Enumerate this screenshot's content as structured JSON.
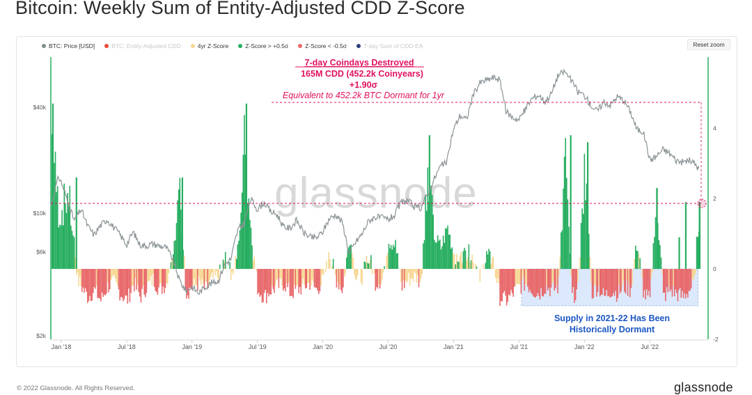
{
  "title": "Bitcoin: Weekly Sum of Entity-Adjusted CDD Z-Score",
  "reset_zoom_label": "Reset zoom",
  "footer": {
    "copyright": "© 2022 Glassnode. All Rights Reserved.",
    "logo_text": "glassnode",
    "watermark_text": "glassnode"
  },
  "legend": [
    {
      "label": "BTC: Price [USD]",
      "color": "#7f8c8d",
      "active": true
    },
    {
      "label": "BTC: Entity-Adjusted CDD",
      "color": "#e74c3c",
      "active": false
    },
    {
      "label": "4yr Z-Score",
      "color": "#f7d794",
      "active": true
    },
    {
      "label": "Z-Score > +0.5σ",
      "color": "#27ae60",
      "active": true
    },
    {
      "label": "Z-Score < -0.5σ",
      "color": "#e86a6a",
      "active": true
    },
    {
      "label": "7-day Sum of CDD-EA",
      "color": "#2c3e7a",
      "active": false
    }
  ],
  "annotations": {
    "top_line1": "7-day Coindays Destroyed",
    "top_line2": "165M CDD (452.2k Coinyears)",
    "top_line3": "+1.90σ",
    "top_line4": "Equivalent to 452.2k BTC Dormant for 1yr",
    "bottom_line1": "Supply in 2021-22 Has Been",
    "bottom_line2": "Historically Dormant"
  },
  "chart_data": {
    "type": "bar",
    "x_ticks": [
      "Jan '18",
      "Jul '18",
      "Jan '19",
      "Jul '19",
      "Jan '20",
      "Jul '20",
      "Jan '21",
      "Jul '21",
      "Jan '22",
      "Jul '22"
    ],
    "y_left_ticks": [
      "$2k",
      "$6k",
      "$10k",
      "$40k"
    ],
    "y_left_tick_values": [
      2000,
      6000,
      10000,
      40000
    ],
    "y_left_scale": "log",
    "y_right_ticks": [
      "-2",
      "0",
      "2",
      "4"
    ],
    "y_right_tick_values": [
      -2,
      0,
      2,
      4
    ],
    "y_right_range": [
      -2,
      5
    ],
    "grid": false,
    "legend_position": "top-left",
    "colors": {
      "price": "#8a9396",
      "zscore_high": "#27ae60",
      "zscore_low": "#e8686a",
      "zscore_mid": "#f7d794",
      "annotation": "#e0115f",
      "annotation_blue": "#1a56c4",
      "shade": "#d6e4fb"
    },
    "series": [
      {
        "name": "BTC: Price [USD]",
        "axis": "left",
        "x": [
          2017.92,
          2017.98,
          2018.0,
          2018.05,
          2018.1,
          2018.15,
          2018.2,
          2018.25,
          2018.3,
          2018.35,
          2018.4,
          2018.45,
          2018.5,
          2018.55,
          2018.6,
          2018.65,
          2018.7,
          2018.75,
          2018.8,
          2018.85,
          2018.9,
          2018.95,
          2019.0,
          2019.05,
          2019.1,
          2019.15,
          2019.2,
          2019.25,
          2019.3,
          2019.35,
          2019.4,
          2019.45,
          2019.5,
          2019.55,
          2019.6,
          2019.65,
          2019.7,
          2019.75,
          2019.8,
          2019.85,
          2019.9,
          2019.95,
          2020.0,
          2020.05,
          2020.1,
          2020.15,
          2020.2,
          2020.25,
          2020.3,
          2020.35,
          2020.4,
          2020.45,
          2020.5,
          2020.55,
          2020.6,
          2020.65,
          2020.7,
          2020.75,
          2020.8,
          2020.85,
          2020.9,
          2020.95,
          2021.0,
          2021.05,
          2021.1,
          2021.15,
          2021.2,
          2021.25,
          2021.3,
          2021.35,
          2021.4,
          2021.45,
          2021.5,
          2021.55,
          2021.6,
          2021.65,
          2021.7,
          2021.75,
          2021.8,
          2021.85,
          2021.9,
          2021.95,
          2022.0,
          2022.05,
          2022.1,
          2022.15,
          2022.2,
          2022.25,
          2022.3,
          2022.35,
          2022.4,
          2022.45,
          2022.5,
          2022.55,
          2022.6,
          2022.65,
          2022.7,
          2022.75,
          2022.8,
          2022.85,
          2022.88
        ],
        "y": [
          11000,
          16000,
          15000,
          11500,
          9000,
          10500,
          8500,
          7500,
          8500,
          9200,
          8300,
          7500,
          6600,
          7800,
          6600,
          6500,
          6700,
          6500,
          6400,
          5500,
          4200,
          3600,
          3800,
          3500,
          3800,
          4000,
          4100,
          5100,
          5500,
          8000,
          8800,
          12000,
          10500,
          11500,
          10200,
          9800,
          8300,
          8200,
          9100,
          7800,
          7300,
          7200,
          7800,
          9300,
          9800,
          8800,
          5800,
          6800,
          7600,
          9000,
          9500,
          9400,
          9200,
          9700,
          11500,
          11800,
          10800,
          10700,
          12800,
          15500,
          18500,
          19500,
          30000,
          36000,
          34000,
          47000,
          55000,
          57000,
          59000,
          58000,
          38000,
          35000,
          34000,
          39000,
          45000,
          47000,
          43000,
          48000,
          61000,
          64000,
          57000,
          49000,
          47000,
          41000,
          38000,
          43000,
          41000,
          46000,
          44000,
          38000,
          30000,
          29000,
          20000,
          21000,
          23000,
          22000,
          20000,
          19500,
          20000,
          19000,
          17500
        ]
      },
      {
        "name": "4yr Z-Score",
        "axis": "right",
        "x": [
          2017.92,
          2017.98,
          2018.05,
          2018.08,
          2018.12,
          2018.15,
          2018.2,
          2018.25,
          2018.3,
          2018.35,
          2018.4,
          2018.45,
          2018.5,
          2018.55,
          2018.6,
          2018.65,
          2018.7,
          2018.75,
          2018.8,
          2018.85,
          2018.9,
          2018.95,
          2019.0,
          2019.05,
          2019.1,
          2019.15,
          2019.2,
          2019.25,
          2019.3,
          2019.35,
          2019.4,
          2019.45,
          2019.5,
          2019.55,
          2019.6,
          2019.65,
          2019.7,
          2019.75,
          2019.8,
          2019.85,
          2019.9,
          2019.95,
          2020.0,
          2020.05,
          2020.1,
          2020.15,
          2020.2,
          2020.25,
          2020.3,
          2020.35,
          2020.4,
          2020.45,
          2020.5,
          2020.55,
          2020.6,
          2020.65,
          2020.7,
          2020.75,
          2020.8,
          2020.85,
          2020.9,
          2020.95,
          2021.0,
          2021.05,
          2021.1,
          2021.15,
          2021.2,
          2021.25,
          2021.3,
          2021.35,
          2021.4,
          2021.45,
          2021.5,
          2021.55,
          2021.6,
          2021.65,
          2021.7,
          2021.75,
          2021.8,
          2021.85,
          2021.9,
          2021.95,
          2022.0,
          2022.05,
          2022.1,
          2022.15,
          2022.2,
          2022.25,
          2022.3,
          2022.35,
          2022.4,
          2022.45,
          2022.5,
          2022.55,
          2022.6,
          2022.65,
          2022.7,
          2022.75,
          2022.8,
          2022.84,
          2022.87
        ],
        "y": [
          4.7,
          1.8,
          2.6,
          1.4,
          -0.3,
          -0.5,
          -0.8,
          -0.6,
          -0.9,
          -0.5,
          -0.4,
          -0.7,
          -0.9,
          -0.4,
          -0.8,
          -0.5,
          -0.3,
          -0.6,
          -0.4,
          0.6,
          2.6,
          -0.7,
          -0.5,
          -0.4,
          -0.6,
          -0.3,
          -0.2,
          0.3,
          -0.2,
          0.8,
          4.7,
          0.9,
          -0.6,
          -0.8,
          -0.6,
          -0.5,
          -0.4,
          -0.7,
          -0.6,
          -0.5,
          -0.4,
          -0.6,
          -0.3,
          0.4,
          -0.3,
          -0.6,
          1.0,
          -0.3,
          -0.2,
          0.4,
          -0.4,
          -0.3,
          0.8,
          0.7,
          -0.5,
          -0.3,
          -0.2,
          -0.4,
          3.8,
          0.9,
          0.6,
          1.2,
          0.4,
          0.3,
          0.5,
          0.3,
          -0.3,
          0.4,
          0.2,
          -0.8,
          -0.9,
          -0.7,
          -0.5,
          -0.4,
          -0.6,
          -0.7,
          -0.5,
          -0.6,
          -0.5,
          3.8,
          -0.8,
          -0.6,
          3.6,
          -0.7,
          -0.5,
          -0.8,
          -0.6,
          -0.7,
          -0.5,
          -0.6,
          0.8,
          -0.7,
          -0.9,
          2.3,
          -0.8,
          -0.6,
          -0.7,
          -0.8,
          -0.6,
          -0.4,
          1.9
        ]
      }
    ],
    "highlight": {
      "value_sigma": 1.9,
      "date": 2022.87
    }
  }
}
